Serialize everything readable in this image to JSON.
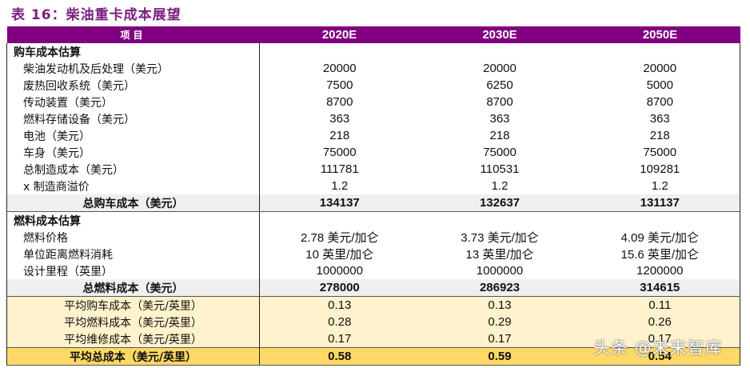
{
  "title": "表 16：柴油重卡成本展望",
  "header": {
    "item": "项目",
    "years": [
      "2020E",
      "2030E",
      "2050E"
    ]
  },
  "colors": {
    "header_bg": "#800080",
    "title": "#7b1f82",
    "total_bg": "#efefef",
    "avg_bg": "#fff2cc",
    "grand_bg": "#ffd966"
  },
  "purchase": {
    "section_label": "购车成本估算",
    "rows": [
      {
        "label": "柴油发动机及后处理（美元）",
        "values": [
          "20000",
          "20000",
          "20000"
        ]
      },
      {
        "label": "废热回收系统（美元）",
        "values": [
          "7500",
          "6250",
          "5000"
        ]
      },
      {
        "label": "传动装置（美元）",
        "values": [
          "8700",
          "8700",
          "8700"
        ]
      },
      {
        "label": "燃料存储设备（美元）",
        "values": [
          "363",
          "363",
          "363"
        ]
      },
      {
        "label": "电池（美元）",
        "values": [
          "218",
          "218",
          "218"
        ]
      },
      {
        "label": "车身（美元）",
        "values": [
          "75000",
          "75000",
          "75000"
        ]
      },
      {
        "label": "总制造成本（美元）",
        "values": [
          "111781",
          "110531",
          "109281"
        ]
      },
      {
        "label": "x 制造商溢价",
        "values": [
          "1.2",
          "1.2",
          "1.2"
        ]
      }
    ],
    "total": {
      "label": "总购车成本（美元）",
      "values": [
        "134137",
        "132637",
        "131137"
      ]
    }
  },
  "fuel": {
    "section_label": "燃料成本估算",
    "rows": [
      {
        "label": "燃料价格",
        "values": [
          "2.78 美元/加仑",
          "3.73 美元/加仑",
          "4.09 美元/加仑"
        ]
      },
      {
        "label": "单位距离燃料消耗",
        "values": [
          "10 英里/加仑",
          "13 英里/加仑",
          "15.6 英里/加仑"
        ]
      },
      {
        "label": "设计里程（英里）",
        "values": [
          "1000000",
          "1000000",
          "1200000"
        ]
      }
    ],
    "total": {
      "label": "总燃料成本（美元）",
      "values": [
        "278000",
        "286923",
        "314615"
      ]
    }
  },
  "averages": {
    "rows": [
      {
        "label": "平均购车成本（美元/英里）",
        "values": [
          "0.13",
          "0.13",
          "0.11"
        ]
      },
      {
        "label": "平均燃料成本（美元/英里）",
        "values": [
          "0.28",
          "0.29",
          "0.26"
        ]
      },
      {
        "label": "平均维修成本（美元/英里）",
        "values": [
          "0.17",
          "0.17",
          "0.17"
        ]
      }
    ],
    "total": {
      "label": "平均总成本（美元/英里）",
      "values": [
        "0.58",
        "0.59",
        "0.54"
      ]
    }
  },
  "watermark": "头条 @未来智库"
}
